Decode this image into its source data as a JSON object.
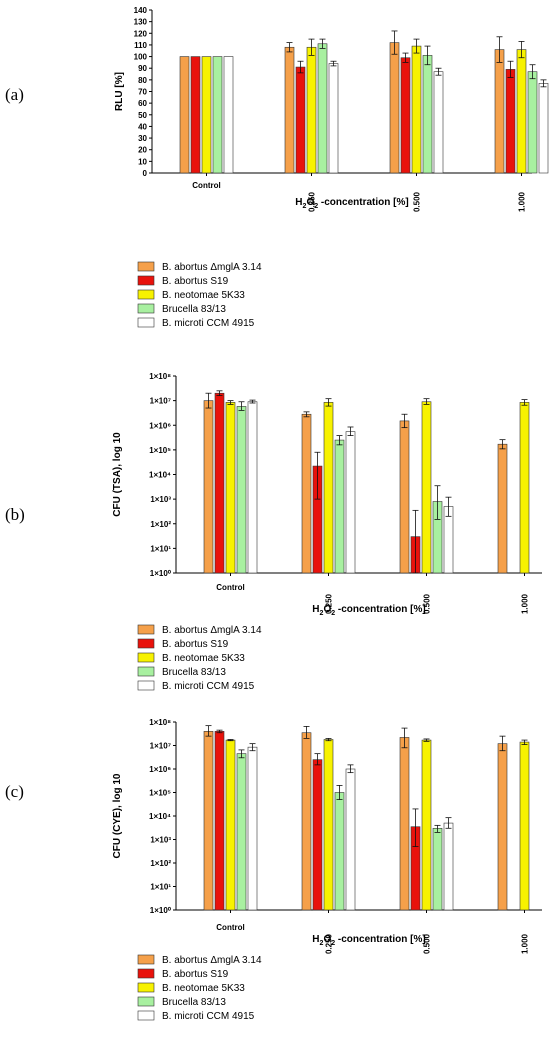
{
  "colors": {
    "B. abortus ΔmglA 3.14": "#f5a04a",
    "B. abortus S19": "#e8120c",
    "B. neotomae 5K33": "#f7f200",
    "Brucella 83/13": "#a8f0a0",
    "B. microti CCM 4915": "#ffffff"
  },
  "chart_data": [
    {
      "type": "bar",
      "panel_label": "(a)",
      "xlabel_main": "H",
      "xlabel_sub": "2",
      "xlabel_mid": "O",
      "xlabel_sub2": "2",
      "xlabel_tail": " -concentration [%]",
      "ylabel": "RLU [%]",
      "yscale": "linear",
      "ylim": [
        0,
        140
      ],
      "yticks": [
        "0",
        "10",
        "20",
        "30",
        "40",
        "50",
        "60",
        "70",
        "80",
        "90",
        "100",
        "110",
        "120",
        "130",
        "140"
      ],
      "categories": [
        "Control",
        "0.250",
        "0.500",
        "1.000"
      ],
      "legend_position": "below",
      "series": [
        {
          "name": "B. abortus ΔmglA 3.14",
          "values": [
            100,
            108,
            112,
            106
          ],
          "errors": [
            0,
            4,
            10,
            11
          ]
        },
        {
          "name": "B. abortus S19",
          "values": [
            100,
            91,
            99,
            89
          ],
          "errors": [
            0,
            5,
            4,
            7
          ]
        },
        {
          "name": "B. neotomae 5K33",
          "values": [
            100,
            108,
            109,
            106
          ],
          "errors": [
            0,
            7,
            6,
            7
          ]
        },
        {
          "name": "Brucella 83/13",
          "values": [
            100,
            111,
            101,
            87
          ],
          "errors": [
            0,
            4,
            8,
            6
          ]
        },
        {
          "name": "B. microti CCM 4915",
          "values": [
            100,
            94,
            87,
            77
          ],
          "errors": [
            0,
            2,
            3,
            3
          ]
        }
      ]
    },
    {
      "type": "bar",
      "panel_label": "(b)",
      "xlabel_main": "H",
      "xlabel_sub": "2",
      "xlabel_mid": "O",
      "xlabel_sub2": "2",
      "xlabel_tail": " -concentration [%]",
      "ylabel": "CFU (TSA), log 10",
      "yscale": "log",
      "ylim": [
        1,
        100000000
      ],
      "yticks": [
        "1×10⁰",
        "1×10¹",
        "1×10²",
        "1×10³",
        "1×10⁴",
        "1×10⁵",
        "1×10⁶",
        "1×10⁷",
        "1×10⁸"
      ],
      "categories": [
        "Control",
        "0.250",
        "0.500",
        "1.000"
      ],
      "legend_position": "below",
      "series": [
        {
          "name": "B. abortus ΔmglA 3.14",
          "values": [
            10000000,
            2800000,
            1500000,
            170000
          ],
          "err_low": [
            5000000,
            2200000,
            800000,
            110000
          ],
          "err_high": [
            20000000,
            3500000,
            2800000,
            260000
          ]
        },
        {
          "name": "B. abortus S19",
          "values": [
            20000000,
            22000,
            30,
            null
          ],
          "err_low": [
            16000000,
            1000,
            1,
            null
          ],
          "err_high": [
            25000000,
            80000,
            350,
            null
          ]
        },
        {
          "name": "B. neotomae 5K33",
          "values": [
            8500000,
            8500000,
            9000000,
            8500000
          ],
          "err_low": [
            7000000,
            6000000,
            7000000,
            6500000
          ],
          "err_high": [
            10000000,
            12000000,
            12000000,
            11000000
          ]
        },
        {
          "name": "Brucella 83/13",
          "values": [
            5800000,
            250000,
            800,
            null
          ],
          "err_low": [
            4000000,
            160000,
            150,
            null
          ],
          "err_high": [
            9000000,
            380000,
            3500,
            null
          ]
        },
        {
          "name": "B. microti CCM 4915",
          "values": [
            9000000,
            550000,
            500,
            null
          ],
          "err_low": [
            8000000,
            380000,
            200,
            null
          ],
          "err_high": [
            10500000,
            850000,
            1200,
            null
          ]
        }
      ]
    },
    {
      "type": "bar",
      "panel_label": "(c)",
      "xlabel_main": "H",
      "xlabel_sub": "2",
      "xlabel_mid": "O",
      "xlabel_sub2": "2",
      "xlabel_tail": " -concentration [%]",
      "ylabel": "CFU (CYE), log 10",
      "yscale": "log",
      "ylim": [
        1,
        100000000
      ],
      "yticks": [
        "1×10⁰",
        "1×10¹",
        "1×10²",
        "1×10³",
        "1×10⁴",
        "1×10⁵",
        "1×10⁶",
        "1×10⁷",
        "1×10⁸"
      ],
      "categories": [
        "Control",
        "0.250",
        "0.500",
        "1.000"
      ],
      "legend_position": "below",
      "series": [
        {
          "name": "B. abortus ΔmglA 3.14",
          "values": [
            40000000,
            35000000,
            22000000,
            12000000
          ],
          "err_low": [
            25000000,
            20000000,
            8000000,
            6000000
          ],
          "err_high": [
            70000000,
            65000000,
            55000000,
            25000000
          ]
        },
        {
          "name": "B. abortus S19",
          "values": [
            40000000,
            2500000,
            3500,
            null
          ],
          "err_low": [
            35000000,
            1500000,
            500,
            null
          ],
          "err_high": [
            45000000,
            4500000,
            20000,
            null
          ]
        },
        {
          "name": "B. neotomae 5K33",
          "values": [
            17000000,
            18000000,
            17000000,
            14000000
          ],
          "err_low": [
            16000000,
            16000000,
            15000000,
            11000000
          ],
          "err_high": [
            18000000,
            20000000,
            19000000,
            17000000
          ]
        },
        {
          "name": "Brucella 83/13",
          "values": [
            4500000,
            100000,
            3000,
            null
          ],
          "err_low": [
            3000000,
            50000,
            2000,
            null
          ],
          "err_high": [
            6500000,
            200000,
            4000,
            null
          ]
        },
        {
          "name": "B. microti CCM 4915",
          "values": [
            8500000,
            1000000,
            5000,
            null
          ],
          "err_low": [
            6000000,
            700000,
            3000,
            null
          ],
          "err_high": [
            12000000,
            1500000,
            8500,
            null
          ]
        }
      ]
    }
  ]
}
